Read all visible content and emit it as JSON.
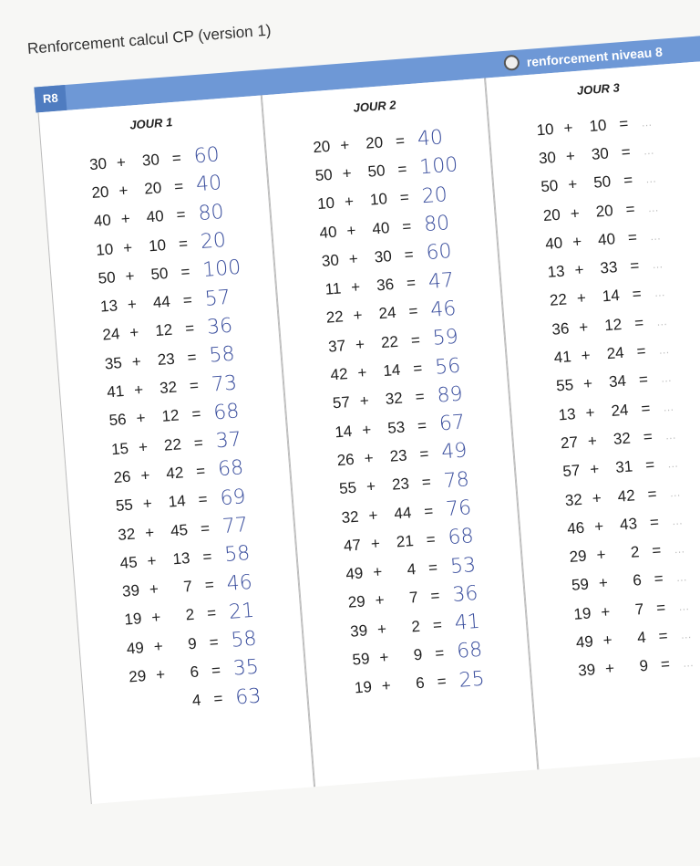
{
  "title": "Renforcement calcul CP (version 1)",
  "badge": "R8",
  "level": {
    "icon": "stopwatch-icon",
    "label": "renforcement niveau 8"
  },
  "colors": {
    "bar": "#6e98d6",
    "badge": "#4f7cc0",
    "handwriting": "#3b4f9e"
  },
  "columns": [
    {
      "heading": "JOUR 1",
      "rows": [
        [
          "30",
          "+",
          "30",
          "=",
          "60"
        ],
        [
          "20",
          "+",
          "20",
          "=",
          "40"
        ],
        [
          "40",
          "+",
          "40",
          "=",
          "80"
        ],
        [
          "10",
          "+",
          "10",
          "=",
          "20"
        ],
        [
          "50",
          "+",
          "50",
          "=",
          "100"
        ],
        [
          "13",
          "+",
          "44",
          "=",
          "57"
        ],
        [
          "24",
          "+",
          "12",
          "=",
          "36"
        ],
        [
          "35",
          "+",
          "23",
          "=",
          "58"
        ],
        [
          "41",
          "+",
          "32",
          "=",
          "73"
        ],
        [
          "56",
          "+",
          "12",
          "=",
          "68"
        ],
        [
          "15",
          "+",
          "22",
          "=",
          "37"
        ],
        [
          "26",
          "+",
          "42",
          "=",
          "68"
        ],
        [
          "55",
          "+",
          "14",
          "=",
          "69"
        ],
        [
          "32",
          "+",
          "45",
          "=",
          "77"
        ],
        [
          "45",
          "+",
          "13",
          "=",
          "58"
        ],
        [
          "39",
          "+",
          "7",
          "=",
          "46"
        ],
        [
          "19",
          "+",
          "2",
          "=",
          "21"
        ],
        [
          "49",
          "+",
          "9",
          "=",
          "58"
        ],
        [
          "29",
          "+",
          "6",
          "=",
          "35"
        ],
        [
          "",
          "",
          "4",
          "=",
          "63"
        ]
      ]
    },
    {
      "heading": "JOUR 2",
      "rows": [
        [
          "20",
          "+",
          "20",
          "=",
          "40"
        ],
        [
          "50",
          "+",
          "50",
          "=",
          "100"
        ],
        [
          "10",
          "+",
          "10",
          "=",
          "20"
        ],
        [
          "40",
          "+",
          "40",
          "=",
          "80"
        ],
        [
          "30",
          "+",
          "30",
          "=",
          "60"
        ],
        [
          "11",
          "+",
          "36",
          "=",
          "47"
        ],
        [
          "22",
          "+",
          "24",
          "=",
          "46"
        ],
        [
          "37",
          "+",
          "22",
          "=",
          "59"
        ],
        [
          "42",
          "+",
          "14",
          "=",
          "56"
        ],
        [
          "57",
          "+",
          "32",
          "=",
          "89"
        ],
        [
          "14",
          "+",
          "53",
          "=",
          "67"
        ],
        [
          "26",
          "+",
          "23",
          "=",
          "49"
        ],
        [
          "55",
          "+",
          "23",
          "=",
          "78"
        ],
        [
          "32",
          "+",
          "44",
          "=",
          "76"
        ],
        [
          "47",
          "+",
          "21",
          "=",
          "68"
        ],
        [
          "49",
          "+",
          "4",
          "=",
          "53"
        ],
        [
          "29",
          "+",
          "7",
          "=",
          "36"
        ],
        [
          "39",
          "+",
          "2",
          "=",
          "41"
        ],
        [
          "59",
          "+",
          "9",
          "=",
          "68"
        ],
        [
          "19",
          "+",
          "6",
          "=",
          "25"
        ]
      ]
    },
    {
      "heading": "JOUR 3",
      "rows": [
        [
          "10",
          "+",
          "10",
          "=",
          "…"
        ],
        [
          "30",
          "+",
          "30",
          "=",
          "…"
        ],
        [
          "50",
          "+",
          "50",
          "=",
          "…"
        ],
        [
          "20",
          "+",
          "20",
          "=",
          "…"
        ],
        [
          "40",
          "+",
          "40",
          "=",
          "…"
        ],
        [
          "13",
          "+",
          "33",
          "=",
          "…"
        ],
        [
          "22",
          "+",
          "14",
          "=",
          "…"
        ],
        [
          "36",
          "+",
          "12",
          "=",
          "…"
        ],
        [
          "41",
          "+",
          "24",
          "=",
          "…"
        ],
        [
          "55",
          "+",
          "34",
          "=",
          "…"
        ],
        [
          "13",
          "+",
          "24",
          "=",
          "…"
        ],
        [
          "27",
          "+",
          "32",
          "=",
          "…"
        ],
        [
          "57",
          "+",
          "31",
          "=",
          "…"
        ],
        [
          "32",
          "+",
          "42",
          "=",
          "…"
        ],
        [
          "46",
          "+",
          "43",
          "=",
          "…"
        ],
        [
          "29",
          "+",
          "2",
          "=",
          "…"
        ],
        [
          "59",
          "+",
          "6",
          "=",
          "…"
        ],
        [
          "19",
          "+",
          "7",
          "=",
          "…"
        ],
        [
          "49",
          "+",
          "4",
          "=",
          "…"
        ],
        [
          "39",
          "+",
          "9",
          "=",
          "…"
        ]
      ]
    }
  ]
}
